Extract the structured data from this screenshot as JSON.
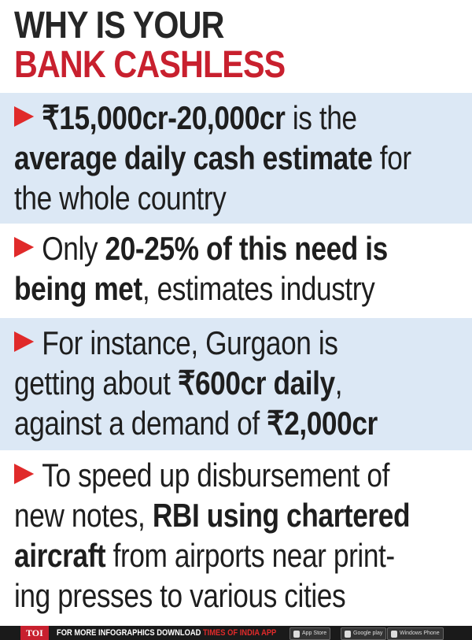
{
  "title": {
    "line1": "WHY IS YOUR",
    "line2": "BANK CASHLESS",
    "line1_color": "#262626",
    "line2_color": "#c8202e"
  },
  "bullet_icon": "red-arrow-icon",
  "points": [
    {
      "lines": [
        [
          {
            "t": "₹15,000cr-20,000cr",
            "b": true
          },
          {
            "t": " is the",
            "b": false
          }
        ],
        [
          {
            "t": "average daily cash estimate",
            "b": true
          },
          {
            "t": " for",
            "b": false
          }
        ],
        [
          {
            "t": "the whole country",
            "b": false
          }
        ]
      ]
    },
    {
      "lines": [
        [
          {
            "t": "Only ",
            "b": false
          },
          {
            "t": "20-25% of this need is",
            "b": true
          }
        ],
        [
          {
            "t": "being met",
            "b": true
          },
          {
            "t": ", estimates industry",
            "b": false
          }
        ]
      ]
    },
    {
      "lines": [
        [
          {
            "t": "For instance, Gurgaon is",
            "b": false
          }
        ],
        [
          {
            "t": "getting about ",
            "b": false
          },
          {
            "t": "₹600cr daily",
            "b": true
          },
          {
            "t": ",",
            "b": false
          }
        ],
        [
          {
            "t": "against a demand of ",
            "b": false
          },
          {
            "t": "₹2,000cr",
            "b": true
          }
        ]
      ]
    },
    {
      "lines": [
        [
          {
            "t": "To speed up disbursement of",
            "b": false
          }
        ],
        [
          {
            "t": "new notes, ",
            "b": false
          },
          {
            "t": "RBI using chartered",
            "b": true
          }
        ],
        [
          {
            "t": "aircraft",
            "b": true
          },
          {
            "t": " from airports near print-",
            "b": false
          }
        ],
        [
          {
            "t": "ing presses to various cities",
            "b": false
          }
        ]
      ]
    }
  ],
  "footer": {
    "logo": "TOI",
    "text": "FOR MORE INFOGRAPHICS DOWNLOAD ",
    "brand": "TIMES OF INDIA APP",
    "badges": [
      {
        "icon": "apple-icon",
        "label": "App Store"
      },
      {
        "icon": "play-icon",
        "label": "Google play"
      },
      {
        "icon": "windows-icon",
        "label": "Windows Phone"
      }
    ]
  },
  "colors": {
    "panel_blue": "#dce8f5",
    "accent_red": "#e02a2a"
  }
}
